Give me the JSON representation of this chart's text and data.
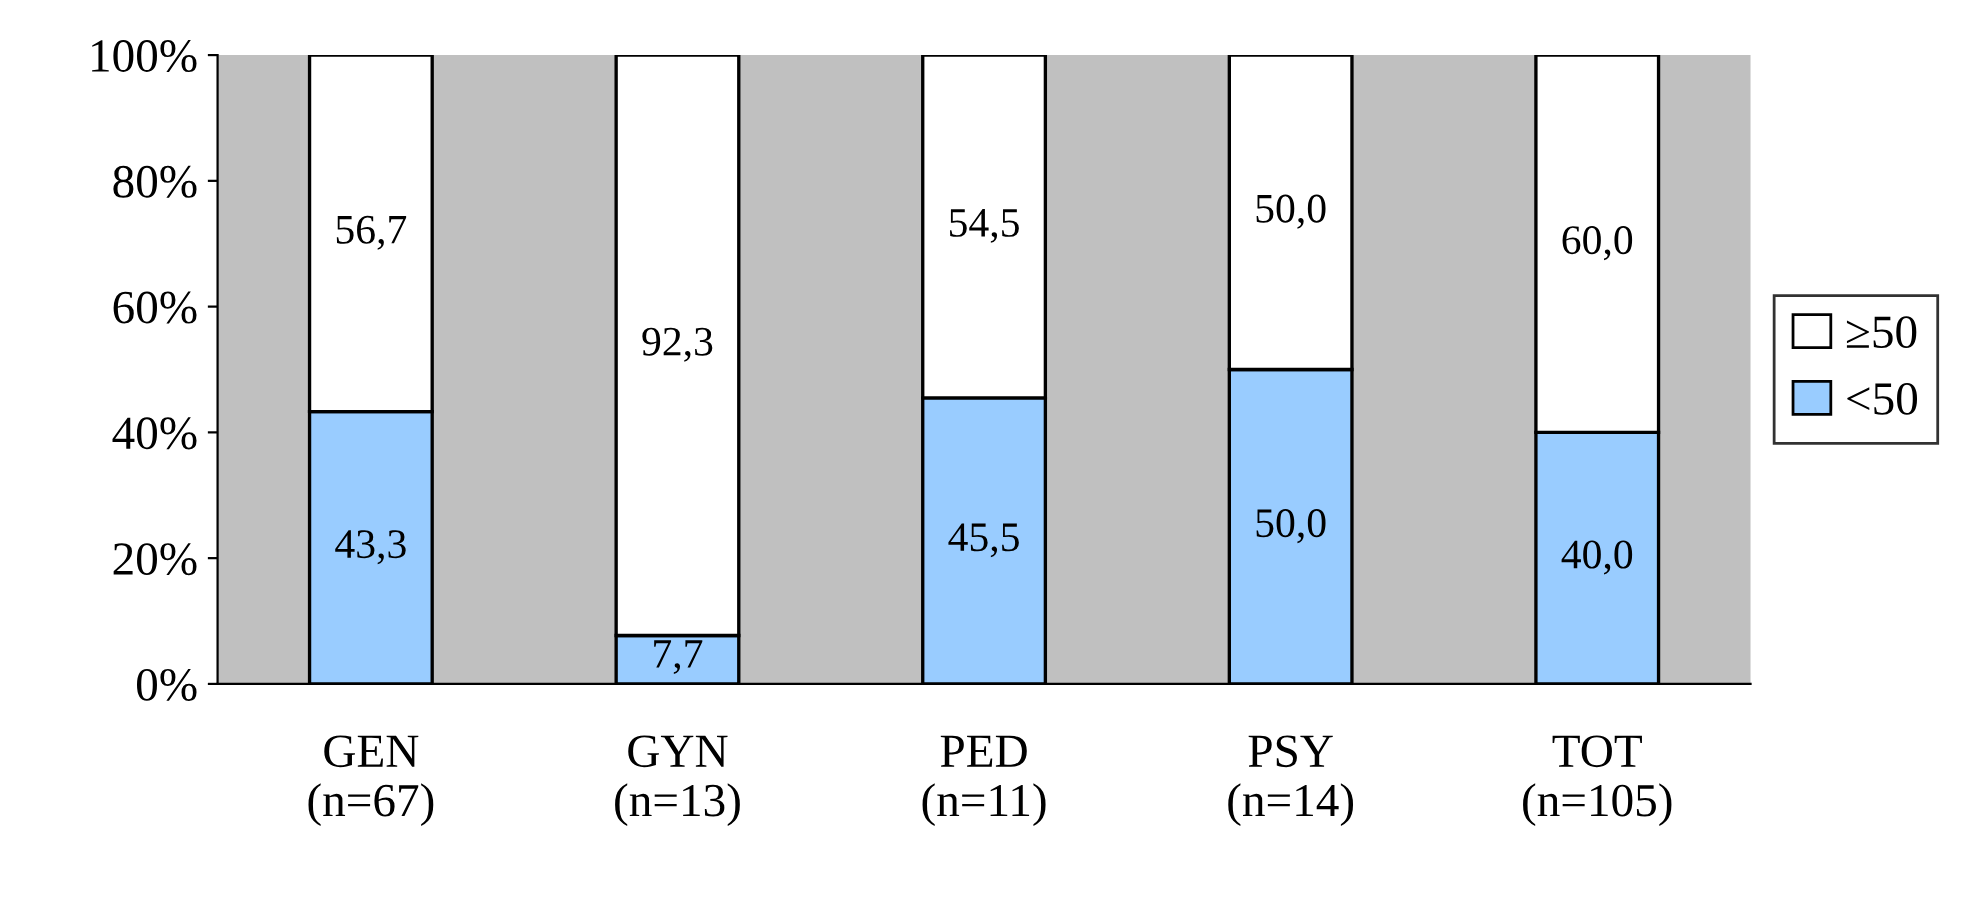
{
  "chart_data": {
    "type": "bar",
    "stacked": true,
    "categories": [
      "GEN\n(n=67)",
      "GYN\n(n=13)",
      "PED\n(n=11)",
      "PSY\n(n=14)",
      "TOT\n(n=105)"
    ],
    "series": [
      {
        "name": "<50",
        "color": "#99ccff",
        "values": [
          43.3,
          7.7,
          45.5,
          50.0,
          40.0
        ],
        "value_labels": [
          "43,3",
          "7,7",
          "45,5",
          "50,0",
          "40,0"
        ]
      },
      {
        "name": "≥50",
        "color": "#ffffff",
        "values": [
          56.7,
          92.3,
          54.5,
          50.0,
          60.0
        ],
        "value_labels": [
          "56,7",
          "92,3",
          "54,5",
          "50,0",
          "60,0"
        ]
      }
    ],
    "ylim": [
      0,
      100
    ],
    "yticks": [
      {
        "value": 0,
        "label": "0%"
      },
      {
        "value": 20,
        "label": "20%"
      },
      {
        "value": 40,
        "label": "40%"
      },
      {
        "value": 60,
        "label": "60%"
      },
      {
        "value": 80,
        "label": "80%"
      },
      {
        "value": 100,
        "label": "100%"
      }
    ],
    "grid": false,
    "legend": "right"
  }
}
